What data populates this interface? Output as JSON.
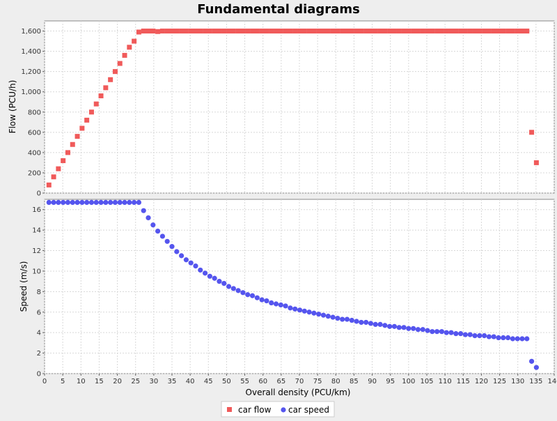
{
  "chart_data": {
    "type": "scatter",
    "title": "Fundamental diagrams",
    "xlabel": "Overall density (PCU/km)",
    "xlim": [
      0,
      140
    ],
    "x_ticks": [
      0,
      5,
      10,
      15,
      20,
      25,
      30,
      35,
      40,
      45,
      50,
      55,
      60,
      65,
      70,
      75,
      80,
      85,
      90,
      95,
      100,
      105,
      110,
      115,
      120,
      125,
      130,
      135,
      140
    ],
    "grid": true,
    "legend": "bottom-center",
    "x": [
      1.2,
      2.5,
      3.8,
      5.1,
      6.4,
      7.7,
      9.0,
      10.3,
      11.6,
      12.9,
      14.2,
      15.5,
      16.8,
      18.1,
      19.4,
      20.7,
      22.0,
      23.3,
      24.6,
      25.9,
      27.2,
      28.5,
      29.8,
      31.1,
      32.4,
      33.7,
      35.0,
      36.3,
      37.6,
      38.9,
      40.2,
      41.5,
      42.8,
      44.1,
      45.4,
      46.7,
      48.0,
      49.3,
      50.6,
      51.9,
      53.2,
      54.5,
      55.8,
      57.1,
      58.4,
      59.7,
      61.0,
      62.3,
      63.6,
      64.9,
      66.2,
      67.5,
      68.8,
      70.1,
      71.4,
      72.7,
      74.0,
      75.3,
      76.6,
      77.9,
      79.2,
      80.5,
      81.8,
      83.1,
      84.4,
      85.7,
      87.0,
      88.3,
      89.6,
      90.9,
      92.2,
      93.5,
      94.8,
      96.1,
      97.4,
      98.7,
      100.0,
      101.3,
      102.6,
      103.9,
      105.2,
      106.5,
      107.8,
      109.1,
      110.4,
      111.7,
      113.0,
      114.3,
      115.6,
      116.9,
      118.2,
      119.5,
      120.8,
      122.1,
      123.4,
      124.7,
      126.0,
      127.3,
      128.6,
      129.9,
      131.2,
      132.5,
      133.8,
      135.1
    ],
    "series": [
      {
        "name": "car flow",
        "color": "#f05a5a",
        "marker": "square",
        "panel": "top",
        "ylabel": "Flow (PCU/h)",
        "ylim": [
          0,
          1700
        ],
        "y_ticks": [
          0,
          200,
          400,
          600,
          800,
          1000,
          1200,
          1400,
          1600
        ],
        "y_tick_labels": [
          "0",
          "200",
          "400",
          "600",
          "800",
          "1,000",
          "1,200",
          "1,400",
          "1,600"
        ],
        "values": [
          80,
          160,
          240,
          320,
          400,
          480,
          560,
          640,
          720,
          800,
          880,
          960,
          1040,
          1120,
          1200,
          1280,
          1360,
          1440,
          1500,
          1590,
          1600,
          1600,
          1600,
          1595,
          1600,
          1600,
          1600,
          1600,
          1600,
          1600,
          1600,
          1600,
          1600,
          1600,
          1600,
          1600,
          1600,
          1600,
          1600,
          1600,
          1600,
          1600,
          1600,
          1600,
          1600,
          1600,
          1600,
          1600,
          1600,
          1600,
          1600,
          1600,
          1600,
          1600,
          1600,
          1600,
          1600,
          1600,
          1600,
          1600,
          1600,
          1600,
          1600,
          1600,
          1600,
          1600,
          1600,
          1600,
          1600,
          1600,
          1600,
          1600,
          1600,
          1600,
          1600,
          1600,
          1600,
          1600,
          1600,
          1600,
          1600,
          1600,
          1600,
          1600,
          1600,
          1600,
          1600,
          1600,
          1600,
          1600,
          1600,
          1600,
          1600,
          1600,
          1600,
          1600,
          1600,
          1600,
          1600,
          1600,
          1600,
          1600,
          600,
          300
        ]
      },
      {
        "name": "car speed",
        "color": "#5555ee",
        "marker": "circle",
        "panel": "bottom",
        "ylabel": "Speed (m/s)",
        "ylim": [
          0,
          17
        ],
        "y_ticks": [
          0,
          2,
          4,
          6,
          8,
          10,
          12,
          14,
          16
        ],
        "y_tick_labels": [
          "0",
          "2",
          "4",
          "6",
          "8",
          "10",
          "12",
          "14",
          "16"
        ],
        "values": [
          16.7,
          16.7,
          16.7,
          16.7,
          16.7,
          16.7,
          16.7,
          16.7,
          16.7,
          16.7,
          16.7,
          16.7,
          16.7,
          16.7,
          16.7,
          16.7,
          16.7,
          16.7,
          16.7,
          16.7,
          15.9,
          15.2,
          14.5,
          13.9,
          13.4,
          12.9,
          12.4,
          11.9,
          11.5,
          11.1,
          10.8,
          10.5,
          10.1,
          9.8,
          9.5,
          9.3,
          9.0,
          8.8,
          8.5,
          8.3,
          8.1,
          7.9,
          7.7,
          7.6,
          7.4,
          7.2,
          7.1,
          6.9,
          6.8,
          6.7,
          6.6,
          6.4,
          6.3,
          6.2,
          6.1,
          6.0,
          5.9,
          5.8,
          5.7,
          5.6,
          5.5,
          5.4,
          5.3,
          5.3,
          5.2,
          5.1,
          5.0,
          5.0,
          4.9,
          4.8,
          4.8,
          4.7,
          4.6,
          4.6,
          4.5,
          4.5,
          4.4,
          4.4,
          4.3,
          4.3,
          4.2,
          4.1,
          4.1,
          4.1,
          4.0,
          4.0,
          3.9,
          3.9,
          3.8,
          3.8,
          3.7,
          3.7,
          3.7,
          3.6,
          3.6,
          3.5,
          3.5,
          3.5,
          3.4,
          3.4,
          3.4,
          3.4,
          1.2,
          0.6
        ]
      }
    ]
  }
}
